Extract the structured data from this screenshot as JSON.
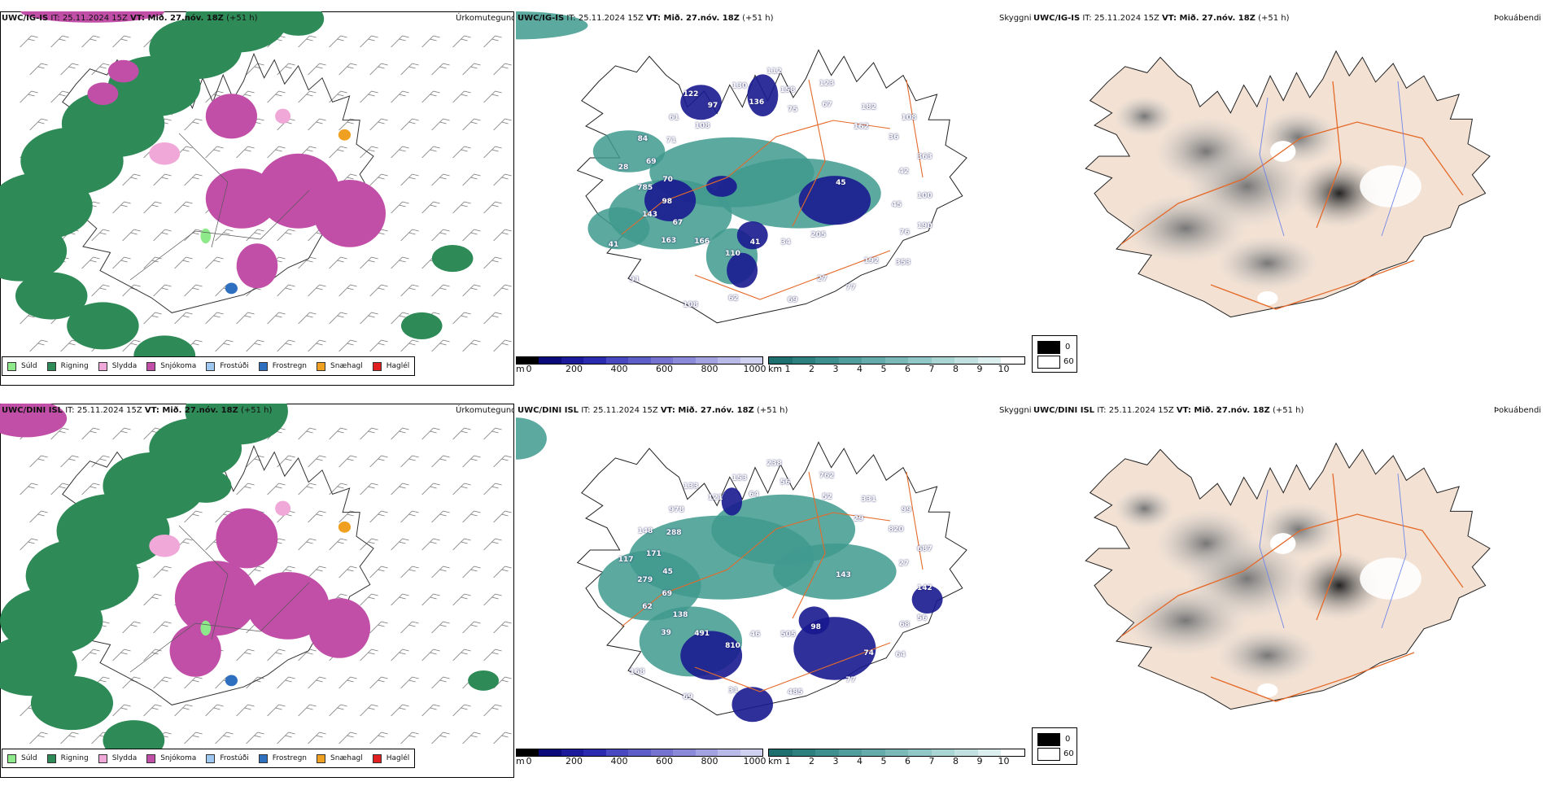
{
  "colors": {
    "rain": "#2e8b57",
    "drizzle": "#8ee98a",
    "sleet": "#f0a8d8",
    "snow": "#c14fa8",
    "freezing_drizzle": "#9ec8f0",
    "freezing_rain": "#2f6fc0",
    "snow_pellets": "#f0a020",
    "hail": "#e02020",
    "road": "#e46a2a",
    "land_fog": "#f3e2d4"
  },
  "rows": [
    {
      "precip": {
        "model": "UWC/IG-IS",
        "it": " IT: 25.11.2024 15Z ",
        "vt_label": "VT:",
        "vt_value": " Mið. 27.nóv. 18Z",
        "lead": " (+51 h)",
        "name": "Úrkomutegund"
      },
      "vis": {
        "model": "UWC/IG-IS",
        "it": " IT: 25.11.2024 15Z ",
        "vt_label": "VT:",
        "vt_value": " Mið. 27.nóv. 18Z",
        "lead": " (+51 h)",
        "name": "Skyggni",
        "labels": [
          "45",
          "163",
          "112",
          "205",
          "28",
          "108",
          "110",
          "122",
          "190",
          "143",
          "123",
          "34",
          "84",
          "363",
          "166",
          "130",
          "353",
          "785",
          "182",
          "41",
          "61",
          "100",
          "67",
          "158",
          "77",
          "69",
          "36",
          "108",
          "97",
          "76",
          "98",
          "67",
          "69",
          "71",
          "42",
          "91",
          "136",
          "192",
          "70",
          "162",
          "62",
          "108",
          "45",
          "41",
          "75",
          "27"
        ]
      },
      "fog": {
        "model": "UWC/IG-IS",
        "it": " IT: 25.11.2024 15Z ",
        "vt_label": "VT:",
        "vt_value": " Mið. 27.nóv. 18Z",
        "lead": " (+51 h)",
        "name": "Þokuábendi"
      }
    },
    {
      "precip": {
        "model": "UWC/DINI ISL",
        "it": " IT: 25.11.2024 15Z ",
        "vt_label": "VT:",
        "vt_value": " Mið. 27.nóv. 18Z",
        "lead": " (+51 h)",
        "name": "Úrkomutegund"
      },
      "vis": {
        "model": "UWC/DINI ISL",
        "it": " IT: 25.11.2024 15Z ",
        "vt_label": "VT:",
        "vt_value": " Mið. 27.nóv. 18Z",
        "lead": " (+51 h)",
        "name": "Skyggni",
        "labels": [
          "143",
          "39",
          "238",
          "98",
          "117",
          "99",
          "810",
          "133",
          "56",
          "62",
          "762",
          "505",
          "148",
          "687",
          "491",
          "153",
          "64",
          "279",
          "331",
          "46",
          "978",
          "142",
          "138",
          "56",
          "77",
          "171",
          "820",
          "69",
          "121",
          "68",
          "69",
          "52",
          "485",
          "288",
          "27",
          "168",
          "64",
          "74",
          "45",
          "29",
          "31"
        ]
      },
      "fog": {
        "model": "UWC/DINI ISL",
        "it": " IT: 25.11.2024 15Z ",
        "vt_label": "VT:",
        "vt_value": " Mið. 27.nóv. 18Z",
        "lead": " (+51 h)",
        "name": "Þokuábendi"
      }
    }
  ],
  "precip_legend": [
    "Súld",
    "Rigning",
    "Slydda",
    "Snjókoma",
    "Frostúði",
    "Frostregn",
    "Snæhagl",
    "Haglél"
  ],
  "height_bar": {
    "unit": "m",
    "ticks": [
      "0",
      "200",
      "400",
      "600",
      "800",
      "1000"
    ],
    "colors": [
      "#000000",
      "#0a0a7a",
      "#1a1a9a",
      "#2b2bb0",
      "#4848c0",
      "#5e5ec8",
      "#7474d0",
      "#8a8ad8",
      "#a2a2e0",
      "#babae8",
      "#d0d0f0"
    ]
  },
  "vis_bar": {
    "unit": "km",
    "ticks": [
      "1",
      "2",
      "3",
      "4",
      "5",
      "6",
      "7",
      "8",
      "9",
      "10"
    ],
    "colors": [
      "#1e6f6f",
      "#2d8080",
      "#3e8f8f",
      "#519d9d",
      "#66abab",
      "#7bb9b9",
      "#92c7c7",
      "#aad5d5",
      "#c2e2e2",
      "#dcefef",
      "#ffffff"
    ]
  },
  "fog_legend": {
    "v1": "0",
    "v2": "60"
  }
}
